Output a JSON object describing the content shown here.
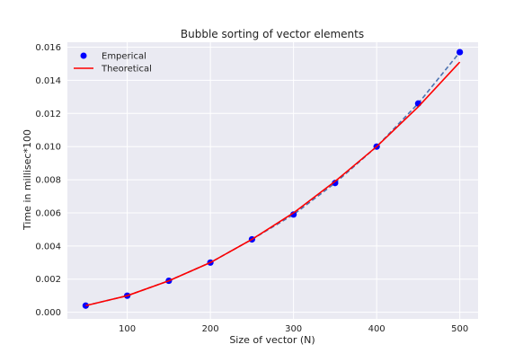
{
  "chart_data": {
    "type": "line",
    "title": "Bubble sorting of vector elements",
    "xlabel": "Size of vector (N)",
    "ylabel": "Time in millisec*100",
    "xlim": [
      28,
      522
    ],
    "ylim": [
      -0.0004,
      0.0163
    ],
    "xticks": [
      100,
      200,
      300,
      400,
      500
    ],
    "yticks": [
      0.0,
      0.002,
      0.004,
      0.006,
      0.008,
      0.01,
      0.012,
      0.014,
      0.016
    ],
    "ytick_labels": [
      "0.000",
      "0.002",
      "0.004",
      "0.006",
      "0.008",
      "0.010",
      "0.012",
      "0.014",
      "0.016"
    ],
    "grid": true,
    "legend_position": "top-left",
    "series": [
      {
        "name": "Emperical",
        "style": "markers with dashed connecting line",
        "marker_color": "#0000ff",
        "line_color": "#4c72b0",
        "x": [
          50,
          100,
          150,
          200,
          250,
          300,
          350,
          400,
          450,
          500
        ],
        "y": [
          0.0004,
          0.001,
          0.0019,
          0.003,
          0.0044,
          0.0059,
          0.0078,
          0.01,
          0.0126,
          0.0157
        ]
      },
      {
        "name": "Theoretical",
        "style": "line",
        "line_color": "#ff0000",
        "x": [
          50,
          100,
          150,
          200,
          250,
          300,
          350,
          400,
          450,
          500
        ],
        "y": [
          0.0004,
          0.001,
          0.0019,
          0.003,
          0.0044,
          0.006,
          0.0079,
          0.01,
          0.0124,
          0.0151
        ]
      }
    ]
  },
  "colors": {
    "plot_background": "#eaeaf2",
    "grid": "#ffffff"
  }
}
